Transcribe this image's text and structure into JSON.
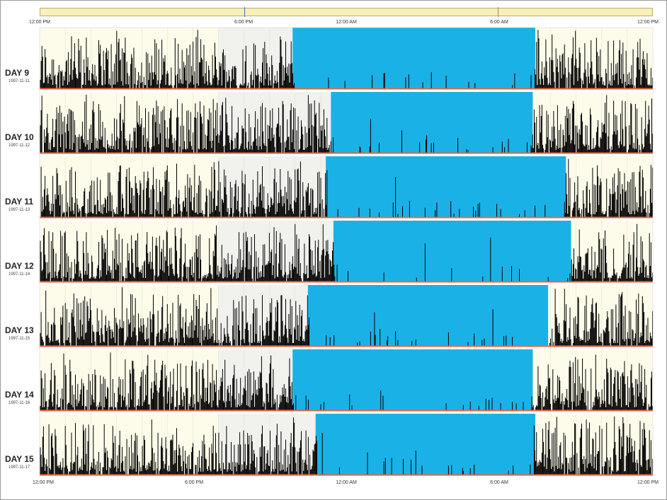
{
  "overview_bar": {
    "marker_colors": [
      "#3a6ec2",
      "#b08c2a"
    ]
  },
  "top_times": [
    "12:00 PM",
    "6:00 PM",
    "12:00 AM",
    "6:00 AM",
    "12:00 PM"
  ],
  "bottom_times": [
    "12:00 PM",
    "6:00 PM",
    "12:00 AM",
    "6:00 AM",
    "12:00 PM"
  ],
  "colors": {
    "sleep": "#1ab2e6",
    "activity": "#000000",
    "baseline": "#e8643c",
    "day_bg": "#fdfbea",
    "evening_bg": "#f1f1ee"
  },
  "chart_data": {
    "type": "actogram",
    "x_unit": "hours from 12:00 PM",
    "x_range": [
      0,
      24
    ],
    "days": [
      {
        "label": "DAY 9",
        "date": "1997-11-11",
        "sleep_start": 9.9,
        "sleep_end": 19.4
      },
      {
        "label": "DAY 10",
        "date": "1997-11-12",
        "sleep_start": 11.4,
        "sleep_end": 19.3
      },
      {
        "label": "DAY 11",
        "date": "1997-11-13",
        "sleep_start": 11.2,
        "sleep_end": 20.6
      },
      {
        "label": "DAY 12",
        "date": "1997-11-14",
        "sleep_start": 11.5,
        "sleep_end": 20.8
      },
      {
        "label": "DAY 13",
        "date": "1997-11-15",
        "sleep_start": 10.5,
        "sleep_end": 19.9
      },
      {
        "label": "DAY 14",
        "date": "1997-11-16",
        "sleep_start": 9.9,
        "sleep_end": 19.3
      },
      {
        "label": "DAY 15",
        "date": "1997-11-17",
        "sleep_start": 10.8,
        "sleep_end": 19.4
      }
    ]
  }
}
